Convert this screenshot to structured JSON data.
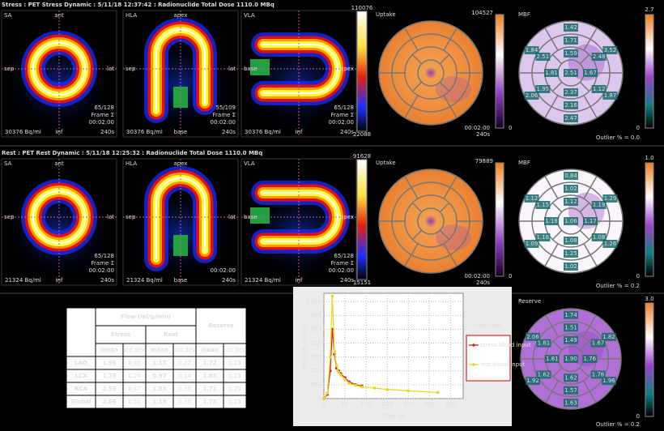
{
  "stress": {
    "header": "Stress : PET Stress Dynamic : 5/11/18 12:37:42 : Radionuclide Total Dose 1110.0 MBq",
    "views": [
      {
        "name": "SA",
        "top": "ant",
        "left": "sep",
        "right": "lat",
        "bottom": "inf",
        "slice": "65/128",
        "frame": "Frame Σ",
        "time": "00:02:00",
        "dur": "240s",
        "activity": "30376 Bq/ml"
      },
      {
        "name": "HLA",
        "top": "apex",
        "left": "sep",
        "right": "lat",
        "bottom": "base",
        "slice": "55/109",
        "frame": "Frame Σ",
        "time": "00:02:00",
        "dur": "240s",
        "activity": "30376 Bq/ml"
      },
      {
        "name": "VLA",
        "left": "base",
        "right": "apex",
        "bottom": "inf",
        "slice": "65/128",
        "frame": "Frame Σ",
        "time": "00:02:00",
        "dur": "240s",
        "activity": "30376 Bq/ml"
      }
    ],
    "colorbar": {
      "max": "110076",
      "min": "22088"
    },
    "uptake": {
      "label": "Uptake",
      "max": "104527",
      "min": "0",
      "time": "00:02:00",
      "dur": "240s"
    },
    "mbf": {
      "label": "MBF",
      "max": "2.7",
      "min": "0",
      "outlier": "Outlier % = 0.0",
      "color": "#dcc8ee",
      "segments": [
        "1.42",
        "1.84",
        "2.06",
        "2.47",
        "1.87",
        "3.52",
        "1.71",
        "2.51",
        "1.95",
        "2.16",
        "1.12",
        "2.48",
        "1.59",
        "1.81",
        "2.37",
        "1.67",
        "2.51"
      ]
    }
  },
  "rest": {
    "header": "Rest : PET Rest Dynamic : 5/11/18 12:25:32 : Radionuclide Total Dose 1110.0 MBq",
    "views": [
      {
        "name": "SA",
        "top": "ant",
        "left": "sep",
        "right": "lat",
        "bottom": "inf",
        "slice": "65/128",
        "frame": "Frame Σ",
        "time": "00:02:00",
        "dur": "240s",
        "activity": "21324 Bq/ml"
      },
      {
        "name": "HLA",
        "top": "apex",
        "left": "sep",
        "right": "lat",
        "bottom": "base",
        "time": "00:02:00",
        "dur": "240s",
        "activity": "21324 Bq/ml"
      },
      {
        "name": "VLA",
        "left": "base",
        "right": "apex",
        "bottom": "inf",
        "slice": "65/128",
        "frame": "Frame Σ",
        "time": "00:02:00",
        "dur": "240s",
        "activity": "21324 Bq/ml"
      }
    ],
    "colorbar": {
      "max": "91628",
      "min": "15151"
    },
    "uptake": {
      "label": "Uptake",
      "max": "79889",
      "min": "0",
      "time": "00:02:00",
      "dur": "240s"
    },
    "mbf": {
      "label": "MBF",
      "max": "1.0",
      "min": "0",
      "outlier": "Outlier % = 0.2",
      "color": "#faf6fc",
      "segments": [
        "0.84",
        "1.12",
        "1.09",
        "1.02",
        "1.26",
        "1.29",
        "1.02",
        "1.15",
        "1.18",
        "1.25",
        "1.08",
        "1.19",
        "1.12",
        "1.18",
        "1.08",
        "1.17",
        "1.06"
      ]
    }
  },
  "reserve": {
    "label": "Reserve",
    "max": "3.0",
    "min": "0",
    "outlier": "Outlier % = 0.2",
    "color": "#b070d8",
    "segments": [
      "1.74",
      "2.06",
      "1.92",
      "1.63",
      "1.96",
      "1.82",
      "1.51",
      "1.81",
      "1.62",
      "1.57",
      "1.76",
      "1.67",
      "1.49",
      "1.81",
      "1.62",
      "1.76",
      "1.90"
    ]
  },
  "table": {
    "header": "Flow (ml/g/min)",
    "groups": [
      "Stress",
      "Rest"
    ],
    "reserve": "Reserve",
    "sub": [
      "mean",
      "std dev",
      "mean",
      "std dev",
      "mean",
      "std dev"
    ],
    "rows": [
      [
        "LAD",
        "1.96",
        "0.45",
        "1.15",
        "0.22",
        "1.72",
        "0.23"
      ],
      [
        "LCX",
        "1.78",
        "0.24",
        "0.97",
        "0.14",
        "1.85",
        "0.23"
      ],
      [
        "RCA",
        "2.59",
        "0.47",
        "1.53",
        "0.30",
        "1.71",
        "0.20"
      ],
      [
        "Global",
        "2.06",
        "0.51",
        "1.19",
        "0.30",
        "1.75",
        "0.23"
      ]
    ]
  },
  "chart_data": {
    "type": "line",
    "legend_title": "Rubidium",
    "xlabel": "Time (s)",
    "ylabel": "Intensity (Bq/ml)",
    "x": [
      0,
      8,
      15,
      20,
      25,
      30,
      35,
      40,
      50,
      60,
      75,
      90,
      120,
      150,
      200,
      270
    ],
    "series": [
      {
        "name": "stress blood input",
        "color": "#e02020",
        "values": [
          0,
          15000,
          100000,
          250000,
          160000,
          110000,
          100000,
          90000,
          75000,
          60000,
          50000,
          45000,
          null,
          null,
          null,
          null
        ]
      },
      {
        "name": "rest blood input",
        "color": "#e8d820",
        "values": [
          0,
          20000,
          150000,
          370000,
          170000,
          120000,
          95000,
          85000,
          70000,
          55000,
          48000,
          42000,
          38000,
          33000,
          28000,
          22000
        ]
      }
    ],
    "xlim": [
      0,
      330
    ],
    "xticks": [
      0,
      50,
      100,
      150,
      200,
      250,
      300
    ],
    "ylim": [
      0,
      380000
    ],
    "yticks": [
      0,
      {
        "value": 50000,
        "label": "5E4"
      },
      {
        "value": 100000,
        "label": "1E5"
      },
      {
        "value": 150000,
        "label": "1.5E5"
      },
      {
        "value": 200000,
        "label": "2E5"
      },
      {
        "value": 250000,
        "label": "2.5E5"
      },
      {
        "value": 300000,
        "label": "3E5"
      },
      {
        "value": 350000,
        "label": "3.5E5"
      }
    ],
    "grid": true,
    "legend": "right"
  }
}
